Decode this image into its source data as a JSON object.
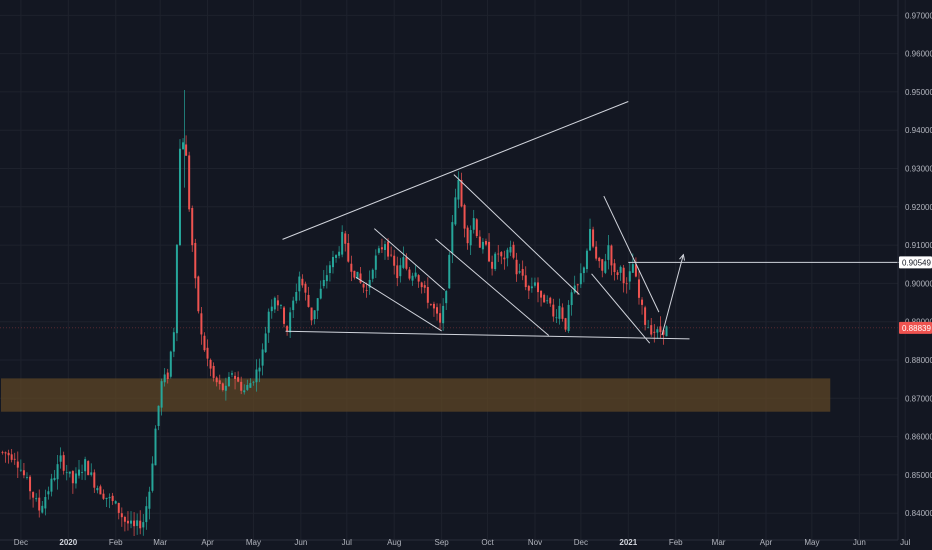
{
  "chart_data": {
    "type": "candlestick",
    "instrument_note": "",
    "colors": {
      "background": "#131722",
      "up": "#26a69a",
      "down": "#ef5350",
      "grid": "#1e222d",
      "trendline": "#d1d4dc",
      "zone": "#5d4525",
      "current_price": "#ef5350",
      "level_tag": "#ffffff"
    },
    "y_axis": {
      "min": 0.833,
      "max": 0.974,
      "ticks": [
        "0.97000",
        "0.96000",
        "0.95000",
        "0.94000",
        "0.93000",
        "0.92000",
        "0.91000",
        "0.90000",
        "0.89000",
        "0.88000",
        "0.87000",
        "0.86000",
        "0.85000",
        "0.84000"
      ]
    },
    "x_axis": {
      "start_day": 0,
      "end_day": 598,
      "ticks": [
        {
          "label": "Dec",
          "day": 13,
          "bold": false
        },
        {
          "label": "2020",
          "day": 44,
          "bold": true
        },
        {
          "label": "Feb",
          "day": 75,
          "bold": false
        },
        {
          "label": "Mar",
          "day": 104,
          "bold": false
        },
        {
          "label": "Apr",
          "day": 135,
          "bold": false
        },
        {
          "label": "May",
          "day": 165,
          "bold": false
        },
        {
          "label": "Jun",
          "day": 196,
          "bold": false
        },
        {
          "label": "Jul",
          "day": 226,
          "bold": false
        },
        {
          "label": "Aug",
          "day": 257,
          "bold": false
        },
        {
          "label": "Sep",
          "day": 288,
          "bold": false
        },
        {
          "label": "Oct",
          "day": 318,
          "bold": false
        },
        {
          "label": "Nov",
          "day": 349,
          "bold": false
        },
        {
          "label": "Dec",
          "day": 379,
          "bold": false
        },
        {
          "label": "2021",
          "day": 410,
          "bold": true
        },
        {
          "label": "Feb",
          "day": 441,
          "bold": false
        },
        {
          "label": "Mar",
          "day": 469,
          "bold": false
        },
        {
          "label": "Apr",
          "day": 500,
          "bold": false
        },
        {
          "label": "May",
          "day": 530,
          "bold": false
        },
        {
          "label": "Jun",
          "day": 561,
          "bold": false
        },
        {
          "label": "Jul",
          "day": 591,
          "bold": false
        }
      ]
    },
    "price_path": [
      [
        0,
        0.856
      ],
      [
        10,
        0.855
      ],
      [
        18,
        0.848
      ],
      [
        26,
        0.841
      ],
      [
        34,
        0.848
      ],
      [
        40,
        0.854
      ],
      [
        48,
        0.848
      ],
      [
        56,
        0.853
      ],
      [
        62,
        0.848
      ],
      [
        68,
        0.845
      ],
      [
        76,
        0.842
      ],
      [
        82,
        0.838
      ],
      [
        88,
        0.836
      ],
      [
        94,
        0.838
      ],
      [
        98,
        0.846
      ],
      [
        102,
        0.862
      ],
      [
        106,
        0.874
      ],
      [
        110,
        0.876
      ],
      [
        114,
        0.888
      ],
      [
        118,
        0.935
      ],
      [
        121,
        0.939
      ],
      [
        124,
        0.92
      ],
      [
        128,
        0.9
      ],
      [
        132,
        0.886
      ],
      [
        136,
        0.88
      ],
      [
        140,
        0.875
      ],
      [
        144,
        0.873
      ],
      [
        148,
        0.872
      ],
      [
        152,
        0.877
      ],
      [
        156,
        0.874
      ],
      [
        160,
        0.872
      ],
      [
        164,
        0.874
      ],
      [
        168,
        0.877
      ],
      [
        172,
        0.882
      ],
      [
        176,
        0.893
      ],
      [
        180,
        0.897
      ],
      [
        184,
        0.893
      ],
      [
        188,
        0.888
      ],
      [
        192,
        0.895
      ],
      [
        196,
        0.902
      ],
      [
        200,
        0.897
      ],
      [
        204,
        0.891
      ],
      [
        208,
        0.896
      ],
      [
        212,
        0.9
      ],
      [
        216,
        0.905
      ],
      [
        220,
        0.907
      ],
      [
        224,
        0.912
      ],
      [
        228,
        0.906
      ],
      [
        232,
        0.903
      ],
      [
        236,
        0.9
      ],
      [
        240,
        0.898
      ],
      [
        244,
        0.905
      ],
      [
        248,
        0.908
      ],
      [
        252,
        0.911
      ],
      [
        256,
        0.906
      ],
      [
        260,
        0.902
      ],
      [
        264,
        0.906
      ],
      [
        268,
        0.902
      ],
      [
        272,
        0.904
      ],
      [
        276,
        0.899
      ],
      [
        280,
        0.896
      ],
      [
        284,
        0.893
      ],
      [
        288,
        0.889
      ],
      [
        290,
        0.893
      ],
      [
        294,
        0.906
      ],
      [
        297,
        0.922
      ],
      [
        300,
        0.926
      ],
      [
        303,
        0.917
      ],
      [
        306,
        0.912
      ],
      [
        310,
        0.917
      ],
      [
        314,
        0.91
      ],
      [
        318,
        0.909
      ],
      [
        322,
        0.905
      ],
      [
        326,
        0.908
      ],
      [
        330,
        0.905
      ],
      [
        334,
        0.91
      ],
      [
        338,
        0.903
      ],
      [
        342,
        0.902
      ],
      [
        346,
        0.898
      ],
      [
        350,
        0.901
      ],
      [
        354,
        0.895
      ],
      [
        358,
        0.897
      ],
      [
        362,
        0.891
      ],
      [
        366,
        0.894
      ],
      [
        370,
        0.889
      ],
      [
        374,
        0.897
      ],
      [
        378,
        0.899
      ],
      [
        382,
        0.905
      ],
      [
        386,
        0.913
      ],
      [
        390,
        0.906
      ],
      [
        394,
        0.903
      ],
      [
        398,
        0.91
      ],
      [
        402,
        0.902
      ],
      [
        406,
        0.904
      ],
      [
        410,
        0.899
      ],
      [
        414,
        0.905
      ],
      [
        418,
        0.896
      ],
      [
        422,
        0.89
      ],
      [
        426,
        0.888
      ],
      [
        430,
        0.887
      ],
      [
        434,
        0.888
      ]
    ],
    "support_zone": {
      "day_start": 0,
      "day_end": 542,
      "low": 0.8665,
      "high": 0.8752
    },
    "trendlines": [
      {
        "name": "upper-broadening-line",
        "points": [
          [
            184,
            0.9115
          ],
          [
            410,
            0.9475
          ]
        ]
      },
      {
        "name": "lower-support-line",
        "points": [
          [
            186,
            0.8875
          ],
          [
            450,
            0.8855
          ]
        ]
      },
      {
        "name": "channel-1-upper",
        "points": [
          [
            244,
            0.9143
          ],
          [
            290,
            0.8982
          ]
        ]
      },
      {
        "name": "channel-1-lower",
        "points": [
          [
            232,
            0.9016
          ],
          [
            288,
            0.8876
          ]
        ]
      },
      {
        "name": "channel-2-upper",
        "points": [
          [
            296,
            0.9284
          ],
          [
            378,
            0.8971
          ]
        ]
      },
      {
        "name": "channel-2-lower",
        "points": [
          [
            284,
            0.9116
          ],
          [
            358,
            0.8864
          ]
        ]
      },
      {
        "name": "channel-3-upper",
        "points": [
          [
            394,
            0.9228
          ],
          [
            430,
            0.8925
          ]
        ]
      },
      {
        "name": "channel-3-lower",
        "points": [
          [
            386,
            0.9025
          ],
          [
            424,
            0.8844
          ]
        ]
      },
      {
        "name": "breakout-level-line",
        "points": [
          [
            410,
            0.9055
          ],
          [
            588,
            0.9055
          ]
        ]
      },
      {
        "name": "projection-path",
        "points": [
          [
            432,
            0.8865
          ],
          [
            446,
            0.9075
          ]
        ]
      }
    ],
    "price_labels": {
      "level": "0.90549",
      "current": "0.88839",
      "current_value": 0.88839,
      "level_value": 0.90549
    }
  }
}
